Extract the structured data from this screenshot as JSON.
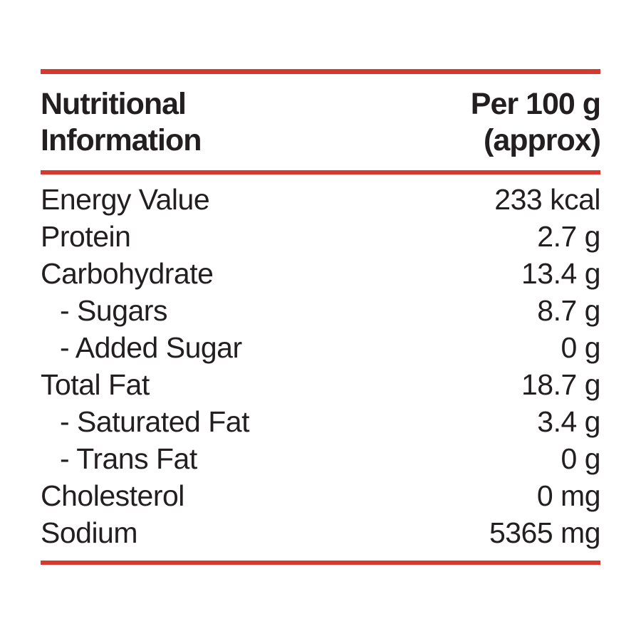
{
  "label": {
    "header": {
      "title_line1": "Nutritional",
      "title_line2": "Information",
      "per_line1": "Per 100 g",
      "per_line2": "(approx)"
    },
    "rows": [
      {
        "label": "Energy Value",
        "value": "233 kcal"
      },
      {
        "label": "Protein",
        "value": "2.7 g"
      },
      {
        "label": "Carbohydrate",
        "value": "13.4 g"
      },
      {
        "label": "- Sugars",
        "value": "8.7 g"
      },
      {
        "label": "- Added Sugar",
        "value": "0 g"
      },
      {
        "label": "Total Fat",
        "value": "18.7 g"
      },
      {
        "label": "- Saturated Fat",
        "value": "3.4 g"
      },
      {
        "label": "- Trans Fat",
        "value": "0 g"
      },
      {
        "label": "Cholesterol",
        "value": "0 mg"
      },
      {
        "label": "Sodium",
        "value": "5365 mg"
      }
    ],
    "colors": {
      "accent_red": "#d6392e",
      "text": "#231f20",
      "background": "#ffffff"
    }
  }
}
